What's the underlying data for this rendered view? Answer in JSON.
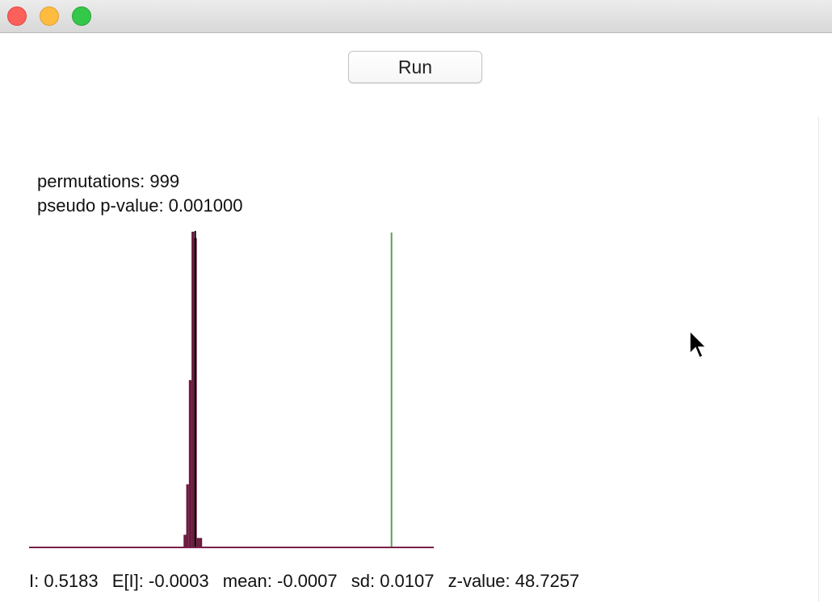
{
  "window": {
    "traffic_lights": [
      "close",
      "minimize",
      "zoom"
    ]
  },
  "toolbar": {
    "run_label": "Run"
  },
  "info": {
    "permutations": "permutations: 999",
    "pseudo_p": "pseudo p-value: 0.001000"
  },
  "stats": {
    "I": "I: 0.5183",
    "EI": "E[I]: -0.0003",
    "mean": "mean: -0.0007",
    "sd": "sd: 0.0107",
    "z": "z-value: 48.7257"
  },
  "colors": {
    "bars": "#6b1a3e",
    "baseline": "#7a2048",
    "observed_line": "#5aa05a",
    "mean_line": "#000000"
  },
  "chart_data": {
    "type": "bar",
    "title": "",
    "xlabel": "",
    "ylabel": "",
    "x": [
      -0.028,
      -0.021,
      -0.014,
      -0.007,
      0.0,
      0.007,
      0.014,
      0.021
    ],
    "values": [
      0.04,
      0.2,
      0.53,
      1.0,
      0.98,
      0.03,
      0.03,
      0.0
    ],
    "ylim": [
      0,
      1
    ],
    "xlim": [
      -0.44,
      0.63
    ],
    "reference_lines": [
      {
        "x": -0.0007
      },
      {
        "x": 0.5183
      }
    ]
  }
}
